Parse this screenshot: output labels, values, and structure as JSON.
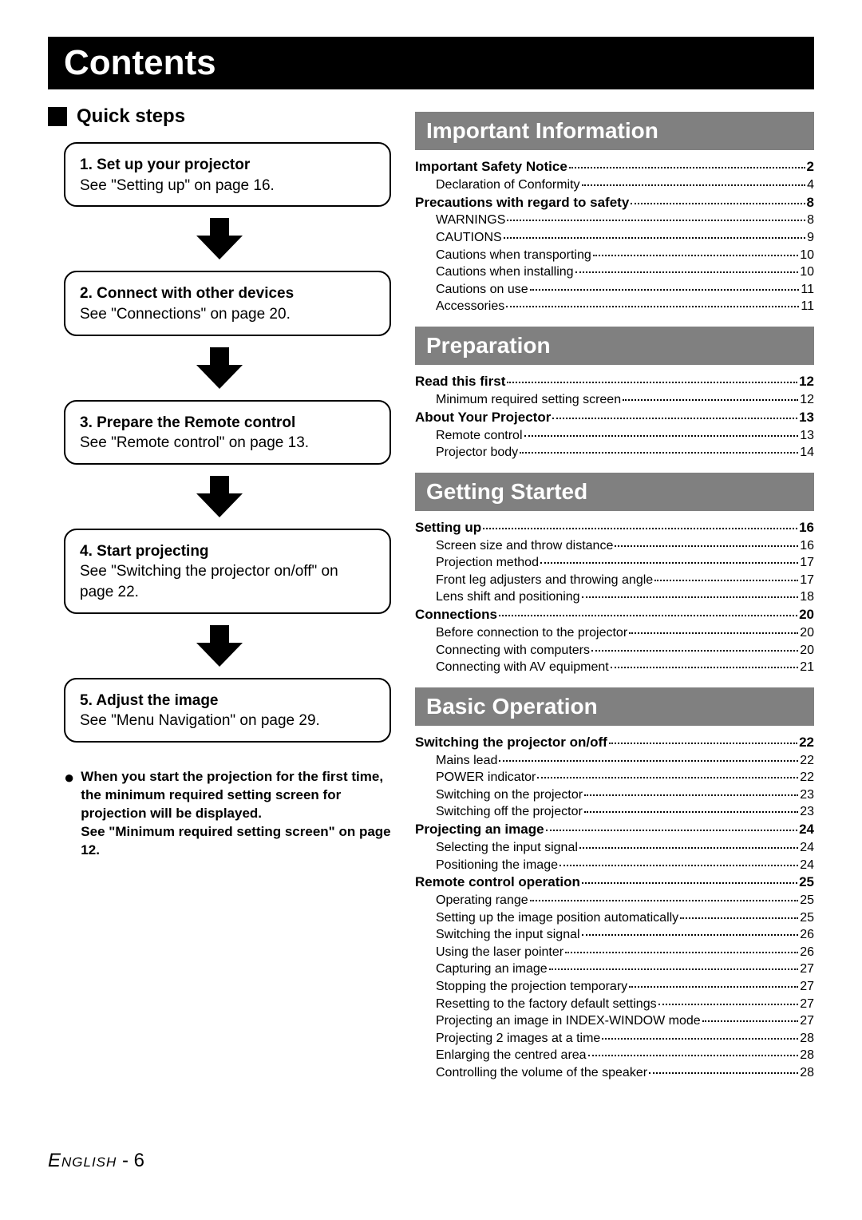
{
  "colors": {
    "black": "#000000",
    "white": "#ffffff",
    "section_grey": "#808080"
  },
  "page_title": "Contents",
  "footer": {
    "language": "English",
    "sep": " - ",
    "page_num": "6"
  },
  "quick_steps": {
    "heading": "Quick steps",
    "steps": [
      {
        "title": "1. Set up your projector",
        "text": "See \"Setting up\" on page 16."
      },
      {
        "title": "2. Connect with other devices",
        "text": "See \"Connections\" on page 20."
      },
      {
        "title": "3. Prepare the Remote control",
        "text": "See \"Remote control\" on page 13."
      },
      {
        "title": "4. Start projecting",
        "text": "See \"Switching the projector on/off\" on page 22."
      },
      {
        "title": "5. Adjust the image",
        "text": "See \"Menu Navigation\" on page 29."
      }
    ],
    "note": "When you start the projection for the first time, the minimum required setting screen for projection will be displayed.\nSee \"Minimum required setting screen\" on page 12."
  },
  "sections": [
    {
      "title": "Important Information",
      "entries": [
        {
          "label": "Important Safety Notice",
          "page": "2",
          "level": "main"
        },
        {
          "label": "Declaration of Conformity",
          "page": "4",
          "level": "sub"
        },
        {
          "label": "Precautions with regard to safety",
          "page": "8",
          "level": "main"
        },
        {
          "label": "WARNINGS",
          "page": "8",
          "level": "sub"
        },
        {
          "label": "CAUTIONS",
          "page": "9",
          "level": "sub"
        },
        {
          "label": "Cautions when transporting",
          "page": "10",
          "level": "sub"
        },
        {
          "label": "Cautions when installing",
          "page": "10",
          "level": "sub"
        },
        {
          "label": "Cautions on use",
          "page": "11",
          "level": "sub"
        },
        {
          "label": "Accessories",
          "page": "11",
          "level": "sub"
        }
      ]
    },
    {
      "title": "Preparation",
      "entries": [
        {
          "label": "Read this first",
          "page": "12",
          "level": "main"
        },
        {
          "label": "Minimum required setting screen",
          "page": "12",
          "level": "sub"
        },
        {
          "label": "About Your Projector",
          "page": "13",
          "level": "main"
        },
        {
          "label": "Remote control",
          "page": "13",
          "level": "sub"
        },
        {
          "label": "Projector body",
          "page": "14",
          "level": "sub"
        }
      ]
    },
    {
      "title": "Getting Started",
      "entries": [
        {
          "label": "Setting up",
          "page": "16",
          "level": "main"
        },
        {
          "label": "Screen size and throw distance",
          "page": "16",
          "level": "sub"
        },
        {
          "label": "Projection method",
          "page": "17",
          "level": "sub"
        },
        {
          "label": "Front leg adjusters and throwing angle",
          "page": "17",
          "level": "sub"
        },
        {
          "label": "Lens shift and positioning",
          "page": "18",
          "level": "sub"
        },
        {
          "label": "Connections",
          "page": "20",
          "level": "main"
        },
        {
          "label": "Before connection to the projector",
          "page": "20",
          "level": "sub"
        },
        {
          "label": "Connecting with computers",
          "page": "20",
          "level": "sub"
        },
        {
          "label": "Connecting with AV equipment",
          "page": "21",
          "level": "sub"
        }
      ]
    },
    {
      "title": "Basic Operation",
      "entries": [
        {
          "label": "Switching the projector on/off",
          "page": "22",
          "level": "main"
        },
        {
          "label": "Mains lead",
          "page": "22",
          "level": "sub"
        },
        {
          "label": "POWER indicator",
          "page": "22",
          "level": "sub"
        },
        {
          "label": "Switching on the projector",
          "page": "23",
          "level": "sub"
        },
        {
          "label": "Switching off the projector",
          "page": "23",
          "level": "sub"
        },
        {
          "label": "Projecting an image",
          "page": "24",
          "level": "main"
        },
        {
          "label": "Selecting the input signal",
          "page": "24",
          "level": "sub"
        },
        {
          "label": "Positioning the image",
          "page": "24",
          "level": "sub"
        },
        {
          "label": "Remote control operation",
          "page": "25",
          "level": "main"
        },
        {
          "label": "Operating range",
          "page": "25",
          "level": "sub"
        },
        {
          "label": "Setting up the image position automatically",
          "page": "25",
          "level": "sub"
        },
        {
          "label": "Switching the input signal",
          "page": "26",
          "level": "sub"
        },
        {
          "label": "Using the laser pointer",
          "page": "26",
          "level": "sub"
        },
        {
          "label": "Capturing an image",
          "page": "27",
          "level": "sub"
        },
        {
          "label": "Stopping the projection temporary",
          "page": "27",
          "level": "sub"
        },
        {
          "label": "Resetting to the factory default settings",
          "page": "27",
          "level": "sub"
        },
        {
          "label": "Projecting an image in INDEX-WINDOW mode",
          "page": "27",
          "level": "sub"
        },
        {
          "label": "Projecting 2 images at a time",
          "page": "28",
          "level": "sub"
        },
        {
          "label": "Enlarging the centred area",
          "page": "28",
          "level": "sub"
        },
        {
          "label": "Controlling the volume of the speaker",
          "page": "28",
          "level": "sub"
        }
      ]
    }
  ]
}
